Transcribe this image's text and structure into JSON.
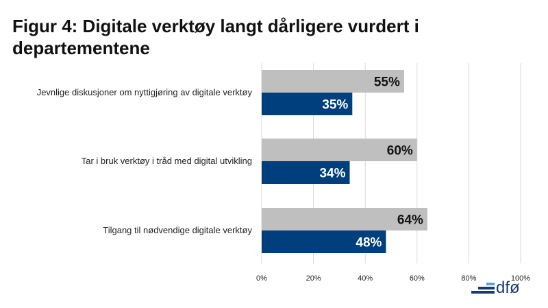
{
  "header": {
    "title": "Figur 4: Digitale verktøy langt dårligere vurdert i departementene"
  },
  "colors": {
    "series_gray": "#bfbfbf",
    "series_blue": "#003f7d",
    "label_dark": "#111111",
    "label_light": "#ffffff",
    "gridline": "#d9d9d9"
  },
  "logo": {
    "text": "dfø",
    "icon": "dfo-logo-bars-icon"
  },
  "chart_data": {
    "type": "bar",
    "orientation": "horizontal",
    "categories": [
      "Jevnlige diskusjoner om nyttigjøring av digitale verktøy",
      "Tar i bruk verktøy i tråd med digital utvikling",
      "Tilgang til nødvendige digitale verktøy"
    ],
    "series": [
      {
        "values": [
          55,
          60,
          64
        ],
        "color": "#bfbfbf"
      },
      {
        "values": [
          35,
          34,
          48
        ],
        "color": "#003f7d"
      }
    ],
    "value_labels": [
      [
        "55%",
        "60%",
        "64%"
      ],
      [
        "35%",
        "34%",
        "48%"
      ]
    ],
    "xlim": [
      0,
      100
    ],
    "xticks": [
      0,
      20,
      40,
      60,
      80,
      100
    ],
    "xtick_labels": [
      "0%",
      "20%",
      "40%",
      "60%",
      "80%",
      "100%"
    ],
    "grid": true,
    "legend": "none"
  }
}
